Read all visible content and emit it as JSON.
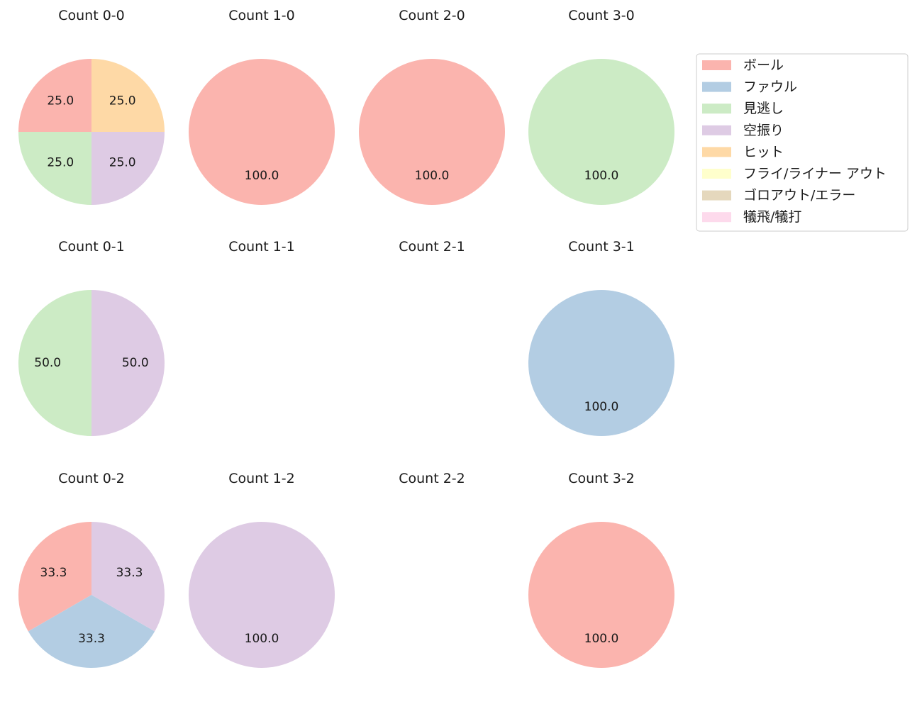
{
  "chart_data": {
    "type": "pie",
    "legend": {
      "placement": "top-right",
      "entries": [
        {
          "label": "ボール",
          "color": "#fbb4ae"
        },
        {
          "label": "ファウル",
          "color": "#b3cde3"
        },
        {
          "label": "見逃し",
          "color": "#ccebc5"
        },
        {
          "label": "空振り",
          "color": "#decbe4"
        },
        {
          "label": "ヒット",
          "color": "#fed9a6"
        },
        {
          "label": "フライ/ライナー アウト",
          "color": "#ffffcc"
        },
        {
          "label": "ゴロアウト/エラー",
          "color": "#e5d8bd"
        },
        {
          "label": "犠飛/犠打",
          "color": "#fddaec"
        }
      ]
    },
    "panels": [
      {
        "title": "Count 0-0",
        "slices": [
          {
            "category": "ボール",
            "value": 25.0,
            "label": "25.0"
          },
          {
            "category": "見逃し",
            "value": 25.0,
            "label": "25.0"
          },
          {
            "category": "空振り",
            "value": 25.0,
            "label": "25.0"
          },
          {
            "category": "ヒット",
            "value": 25.0,
            "label": "25.0"
          }
        ]
      },
      {
        "title": "Count 1-0",
        "slices": [
          {
            "category": "ボール",
            "value": 100.0,
            "label": "100.0"
          }
        ]
      },
      {
        "title": "Count 2-0",
        "slices": [
          {
            "category": "ボール",
            "value": 100.0,
            "label": "100.0"
          }
        ]
      },
      {
        "title": "Count 3-0",
        "slices": [
          {
            "category": "見逃し",
            "value": 100.0,
            "label": "100.0"
          }
        ]
      },
      {
        "title": "Count 0-1",
        "slices": [
          {
            "category": "見逃し",
            "value": 50.0,
            "label": "50.0"
          },
          {
            "category": "空振り",
            "value": 50.0,
            "label": "50.0"
          }
        ]
      },
      {
        "title": "Count 1-1",
        "slices": []
      },
      {
        "title": "Count 2-1",
        "slices": []
      },
      {
        "title": "Count 3-1",
        "slices": [
          {
            "category": "ファウル",
            "value": 100.0,
            "label": "100.0"
          }
        ]
      },
      {
        "title": "Count 0-2",
        "slices": [
          {
            "category": "ボール",
            "value": 33.3,
            "label": "33.3"
          },
          {
            "category": "ファウル",
            "value": 33.3,
            "label": "33.3"
          },
          {
            "category": "空振り",
            "value": 33.3,
            "label": "33.3"
          }
        ]
      },
      {
        "title": "Count 1-2",
        "slices": [
          {
            "category": "空振り",
            "value": 100.0,
            "label": "100.0"
          }
        ]
      },
      {
        "title": "Count 2-2",
        "slices": []
      },
      {
        "title": "Count 3-2",
        "slices": [
          {
            "category": "ボール",
            "value": 100.0,
            "label": "100.0"
          }
        ]
      }
    ]
  }
}
